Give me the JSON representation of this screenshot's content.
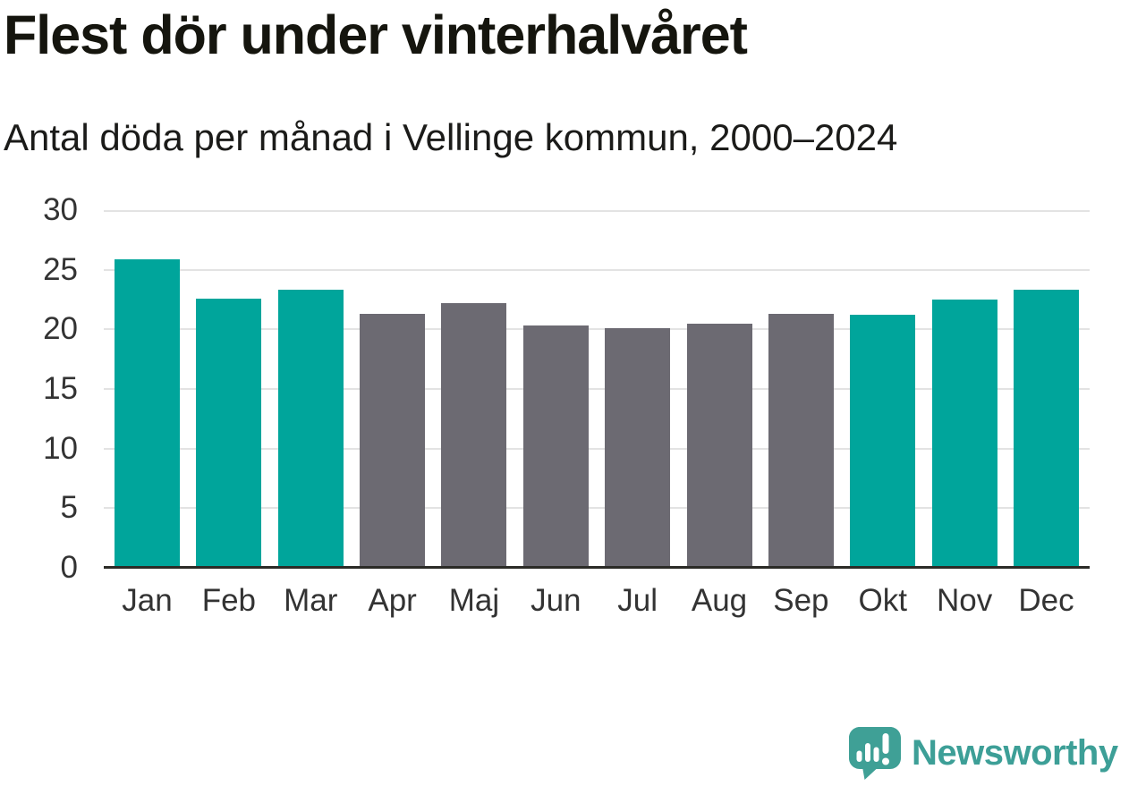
{
  "title": "Flest dör under vinterhalvåret",
  "subtitle": "Antal döda per månad i Vellinge kommun, 2000–2024",
  "chart_data": {
    "type": "bar",
    "title": "Flest dör under vinterhalvåret",
    "subtitle": "Antal döda per månad i Vellinge kommun, 2000–2024",
    "categories": [
      "Jan",
      "Feb",
      "Mar",
      "Apr",
      "Maj",
      "Jun",
      "Jul",
      "Aug",
      "Sep",
      "Okt",
      "Nov",
      "Dec"
    ],
    "values": [
      25.9,
      22.6,
      23.3,
      21.3,
      22.2,
      20.3,
      20.1,
      20.5,
      21.3,
      21.2,
      22.5,
      23.3
    ],
    "bar_roles": [
      "winter",
      "winter",
      "winter",
      "summer",
      "summer",
      "summer",
      "summer",
      "summer",
      "summer",
      "winter",
      "winter",
      "winter"
    ],
    "colors": {
      "winter": "#00A59B",
      "summer": "#6C6A72",
      "gridline": "#E3E3E3",
      "axis": "#2B2B27",
      "tick_text": "#333333"
    },
    "xlabel": "",
    "ylabel": "",
    "ylim": [
      0,
      30
    ],
    "yticks": [
      0,
      5,
      10,
      15,
      20,
      25,
      30
    ],
    "grid": "horizontal-only",
    "legend": "none"
  },
  "branding": {
    "logo_text": "Newsworthy",
    "logo_color": "#3D9F97",
    "logo_icon": "newsworthy-chart-bubble-icon"
  }
}
